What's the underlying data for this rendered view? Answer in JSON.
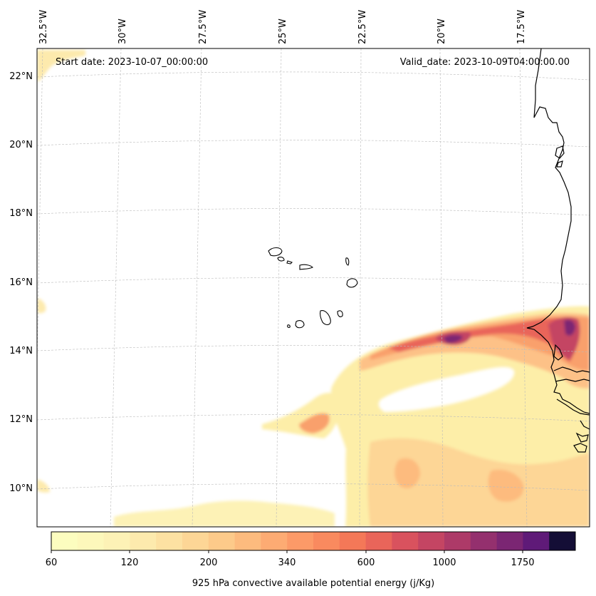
{
  "header": {
    "start_date": "Start date: 2023-10-07_00:00:00",
    "valid_date": "Valid_date: 2023-10-09T04:00:00.00"
  },
  "longitude_labels": [
    "32.5°W",
    "30°W",
    "27.5°W",
    "25°W",
    "22.5°W",
    "20°W",
    "17.5°W"
  ],
  "latitude_labels": [
    "22°N",
    "20°N",
    "18°N",
    "16°N",
    "14°N",
    "12°N",
    "10°N"
  ],
  "colorbar": {
    "title": "925 hPa convective available potential energy (j/Kg)",
    "tick_labels": [
      "60",
      "120",
      "200",
      "340",
      "600",
      "1000",
      "1750"
    ],
    "colors": [
      "#fcfdbf",
      "#fdf8bb",
      "#fdf2b6",
      "#fdeaad",
      "#fde1a2",
      "#fdd696",
      "#fdca8a",
      "#fdbb7e",
      "#fdab73",
      "#fc9a68",
      "#f98a5f",
      "#f47858",
      "#e9655a",
      "#d9525e",
      "#c44563",
      "#ad3a68",
      "#94306e",
      "#7b2673",
      "#5f1a78",
      "#140e36"
    ]
  },
  "map": {
    "lon_range": [
      -32.5,
      -15.5
    ],
    "lat_range": [
      9,
      22.5
    ],
    "colors": {
      "cape_low": "#fdeea8",
      "cape_mid": "#fdc187",
      "cape_high": "#f47858",
      "cape_peak": "#c44563",
      "cape_max": "#7b2673"
    }
  }
}
